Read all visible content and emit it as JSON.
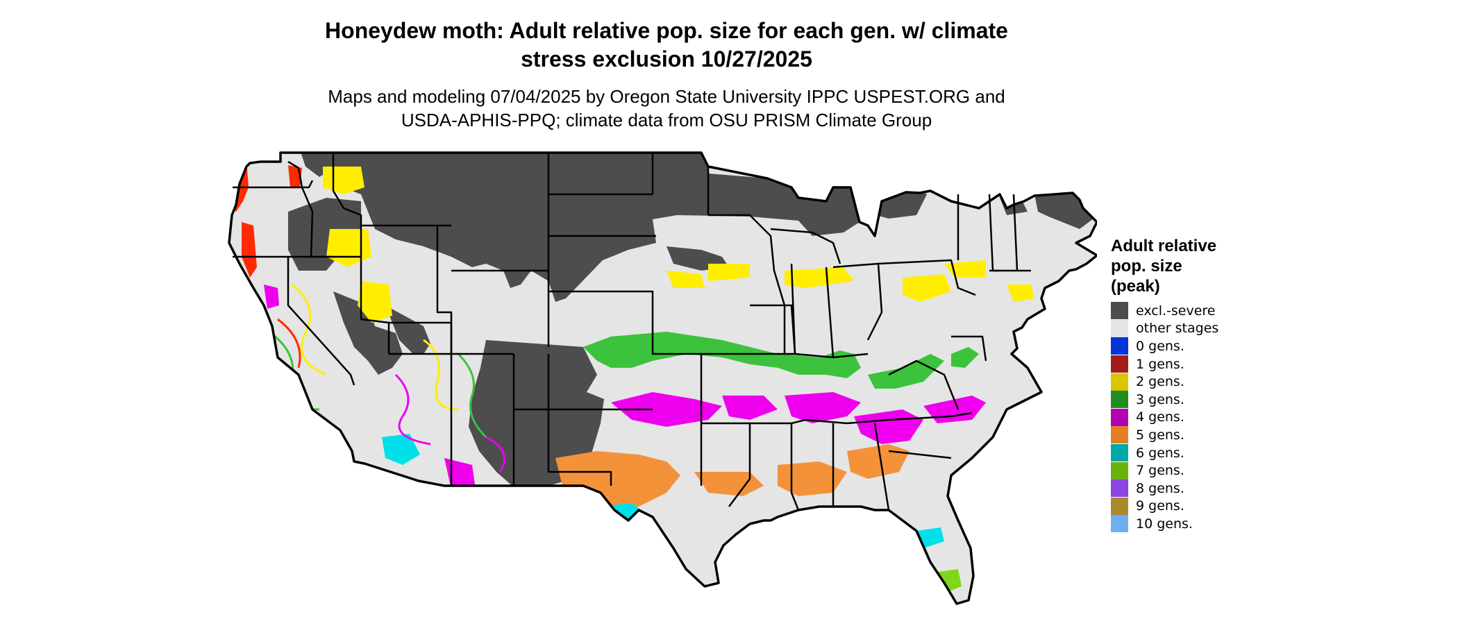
{
  "title": {
    "line1": "Honeydew moth: Adult relative pop. size for each gen. w/ climate",
    "line2": "stress exclusion 10/27/2025"
  },
  "subtitle": {
    "line1": "Maps and modeling 07/04/2025 by Oregon State University IPPC USPEST.ORG and",
    "line2": "USDA-APHIS-PPQ; climate data from OSU PRISM Climate Group"
  },
  "legend": {
    "title_line1": "Adult relative",
    "title_line2": "pop. size",
    "title_line3": "(peak)",
    "items": [
      {
        "label": "excl.-severe",
        "color": "#4d4d4d"
      },
      {
        "label": "other stages",
        "color": "#e5e5e5"
      },
      {
        "label": "0 gens.",
        "color": "#0433d9"
      },
      {
        "label": "1 gens.",
        "color": "#a31c1c"
      },
      {
        "label": "2 gens.",
        "color": "#d9c600"
      },
      {
        "label": "3 gens.",
        "color": "#238b23"
      },
      {
        "label": "4 gens.",
        "color": "#b300b3"
      },
      {
        "label": "5 gens.",
        "color": "#e67e22"
      },
      {
        "label": "6 gens.",
        "color": "#00a8a8"
      },
      {
        "label": "7 gens.",
        "color": "#6ab20e"
      },
      {
        "label": "8 gens.",
        "color": "#8e44e0"
      },
      {
        "label": "9 gens.",
        "color": "#a68b2c"
      },
      {
        "label": "10 gens.",
        "color": "#6eaef5"
      }
    ]
  },
  "map": {
    "colors": {
      "background": "#e5e5e5",
      "excluded": "#4d4d4d",
      "borders": "#000000",
      "gen1_map": "#ff2a00",
      "gen2_map": "#ffee00",
      "gen3_map": "#3cc23c",
      "gen4_map": "#ee00ee",
      "gen5_map": "#f4923a",
      "gen6_map": "#00e0e8",
      "gen7_map": "#7fd61a"
    }
  }
}
